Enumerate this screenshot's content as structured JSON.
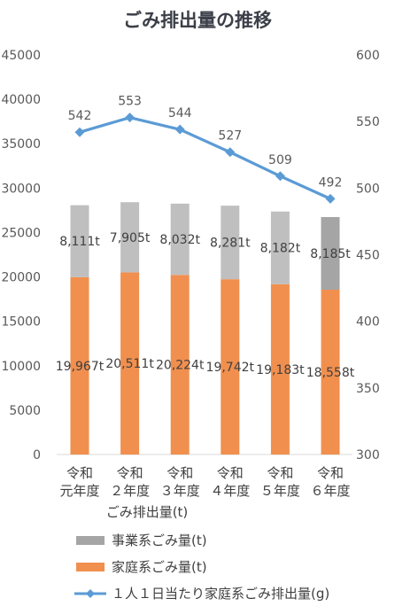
{
  "chart_data": {
    "type": "bar",
    "title": "ごみ排出量の推移",
    "xlabel": "ごみ排出量(t)",
    "categories": [
      [
        "令和",
        "元年度"
      ],
      [
        "令和",
        "２年度"
      ],
      [
        "令和",
        "３年度"
      ],
      [
        "令和",
        "４年度"
      ],
      [
        "令和",
        "５年度"
      ],
      [
        "令和",
        "６年度"
      ]
    ],
    "y_left": {
      "min": 0,
      "max": 45000,
      "ticks": [
        "0",
        "5000",
        "10000",
        "15000",
        "20000",
        "25000",
        "30000",
        "35000",
        "40000",
        "45000"
      ]
    },
    "y_right": {
      "min": 300,
      "max": 600,
      "ticks": [
        "300",
        "350",
        "400",
        "450",
        "500",
        "550",
        "600"
      ]
    },
    "stacked": true,
    "series": [
      {
        "name": "家庭系ごみ量(t)",
        "kind": "bar",
        "axis": "left",
        "color": "#f18f4e",
        "values": [
          19967,
          20511,
          20224,
          19742,
          19183,
          18558
        ],
        "labels": [
          "19,967t",
          "20,511t",
          "20,224t",
          "19,742t",
          "19,183t",
          "18,558t"
        ]
      },
      {
        "name": "事業系ごみ量(t)",
        "kind": "bar",
        "axis": "left",
        "colors": [
          "#bfbfbf",
          "#bfbfbf",
          "#bfbfbf",
          "#bfbfbf",
          "#bfbfbf",
          "#a5a5a5"
        ],
        "values": [
          8111,
          7905,
          8032,
          8281,
          8182,
          8185
        ],
        "labels": [
          "8,111t",
          "7,905t",
          "8,032t",
          "8,281t",
          "8,182t",
          "8,185t"
        ]
      },
      {
        "name": "１人１日当たり家庭系ごみ排出量(g)",
        "kind": "line",
        "axis": "right",
        "color": "#5b9bd5",
        "values": [
          542,
          553,
          544,
          527,
          509,
          492
        ],
        "labels": [
          "542",
          "553",
          "544",
          "527",
          "509",
          "492"
        ]
      }
    ],
    "legend": {
      "position": "bottom",
      "items": [
        {
          "label": "事業系ごみ量(t)",
          "swatch": "bar",
          "color": "#a5a5a5"
        },
        {
          "label": "家庭系ごみ量(t)",
          "swatch": "bar",
          "color": "#f18f4e"
        },
        {
          "label": "１人１日当たり家庭系ごみ排出量(g)",
          "swatch": "line",
          "color": "#5b9bd5"
        }
      ]
    },
    "grid": false
  }
}
